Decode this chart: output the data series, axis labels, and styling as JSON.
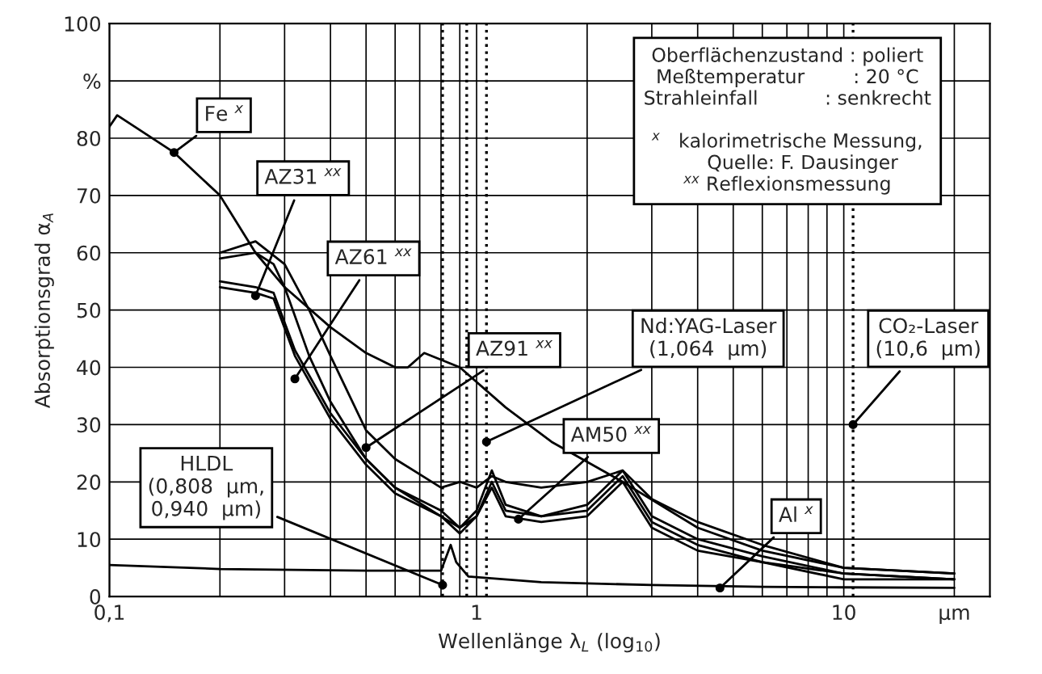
{
  "chart_data": {
    "type": "line",
    "xlabel": "Wellenlänge λ$_{L}$ (log$_{10}$)",
    "ylabel": "Absorptionsgrad α$_{A}$",
    "log": "x",
    "grid": true,
    "legend": false,
    "line_style": "solid",
    "xlim": [
      0.1,
      25
    ],
    "xticks": [
      {
        "value": 0.1,
        "label": "0,1"
      },
      1,
      10,
      {
        "value": 20,
        "label": "µm"
      }
    ],
    "ylim": [
      0,
      100
    ],
    "yticks": [
      0,
      10,
      20,
      30,
      40,
      50,
      60,
      70,
      80,
      {
        "value": 90,
        "label": "%"
      },
      100
    ],
    "series": [
      {
        "color": "#000000",
        "x": [
          0.1,
          0.105,
          0.15,
          0.2,
          0.25,
          0.3,
          0.4,
          0.5,
          0.6,
          0.65,
          0.72,
          0.9,
          1.2,
          1.6,
          2.5,
          4,
          6,
          10,
          20
        ],
        "values": [
          82,
          84,
          77.5,
          70,
          60,
          54,
          47,
          42.5,
          40,
          40,
          42.5,
          40,
          33,
          27,
          20,
          12,
          8,
          5,
          4
        ]
      },
      {
        "color": "#000000",
        "x": [
          0.2,
          0.25,
          0.3,
          0.35,
          0.4,
          0.5,
          0.6,
          0.8,
          0.9,
          1.0,
          1.1,
          1.2,
          1.5,
          2.0,
          2.5,
          3,
          4,
          6,
          10,
          20
        ],
        "values": [
          60,
          62,
          58,
          50,
          42,
          29,
          24,
          19,
          20,
          19,
          21,
          20,
          19,
          20,
          22,
          17,
          13,
          9,
          5,
          4
        ]
      },
      {
        "color": "#000000",
        "x": [
          0.2,
          0.25,
          0.28,
          0.3,
          0.35,
          0.4,
          0.5,
          0.6,
          0.8,
          0.9,
          1.0,
          1.1,
          1.2,
          1.5,
          2.0,
          2.5,
          3,
          4,
          6,
          10,
          20
        ],
        "values": [
          59,
          60,
          58,
          54,
          42,
          34,
          24,
          19,
          15,
          12,
          15,
          22,
          16,
          14,
          16,
          22,
          14,
          10,
          7,
          4,
          3
        ]
      },
      {
        "color": "#000000",
        "x": [
          0.2,
          0.25,
          0.28,
          0.32,
          0.4,
          0.5,
          0.6,
          0.8,
          0.9,
          1.0,
          1.1,
          1.2,
          1.5,
          2.0,
          2.5,
          3,
          4,
          6,
          10,
          20
        ],
        "values": [
          54,
          53,
          52,
          42,
          31,
          23,
          18,
          14,
          12,
          14,
          20,
          15,
          14,
          15,
          21,
          13,
          9,
          6,
          4,
          3
        ]
      },
      {
        "color": "#000000",
        "x": [
          0.2,
          0.25,
          0.28,
          0.32,
          0.4,
          0.5,
          0.6,
          0.8,
          0.9,
          1.0,
          1.1,
          1.2,
          1.5,
          2.0,
          2.5,
          3,
          4,
          6,
          10,
          20
        ],
        "values": [
          55,
          54,
          53,
          43,
          32,
          24,
          19,
          14,
          11,
          14,
          19,
          14,
          13,
          14,
          20,
          12,
          8,
          6,
          3,
          3
        ]
      },
      {
        "color": "#000000",
        "x": [
          0.1,
          0.2,
          0.5,
          0.8,
          0.85,
          0.88,
          0.95,
          1.5,
          3,
          6,
          10,
          20
        ],
        "values": [
          5.5,
          4.8,
          4.5,
          4.5,
          9,
          6,
          3.5,
          2.5,
          2,
          1.7,
          1.6,
          1.5
        ]
      }
    ],
    "ref_lines": [
      {
        "axis": "x",
        "value": 0.808,
        "line_style": "dotted",
        "color": "#000000"
      },
      {
        "axis": "x",
        "value": 0.94,
        "line_style": "dotted",
        "color": "#000000"
      },
      {
        "axis": "x",
        "value": 1.064,
        "line_style": "dotted",
        "color": "#000000"
      },
      {
        "axis": "x",
        "value": 10.6,
        "line_style": "dotted",
        "color": "#000000"
      }
    ],
    "annotations": [
      {
        "text": "Fe $^{x}$",
        "x": 0.15,
        "y": 77.5
      },
      {
        "text": "AZ31 $^{xx}$",
        "x": 0.25,
        "y": 52.5
      },
      {
        "text": "AZ61 $^{xx}$",
        "x": 0.32,
        "y": 38
      },
      {
        "text": "AZ91 $^{xx}$",
        "x": 0.5,
        "y": 26
      },
      {
        "text": "Nd:YAG-Laser\n(1,064  µm)",
        "x": 1.064,
        "y": 27
      },
      {
        "text": "CO₂-Laser\n(10,6  µm)",
        "x": 10.6,
        "y": 30
      },
      {
        "text": "AM50 $^{xx}$",
        "x": 1.3,
        "y": 13.5
      },
      {
        "text": "Al $^{x}$",
        "x": 4.6,
        "y": 1.5
      },
      {
        "text": "HLDL\n(0,808  µm,\n0,940  µm)",
        "x": 0.808,
        "y": 2
      },
      "Oberflächenzustand : poliert\nMeßtemperatur        : 20 °C\nStrahleinfall           : senkrecht\n\n$^{x}$   kalorimetrische Messung,\n     Quelle: F. Dausinger\n$^{xx}$ Reflexionsmessung"
    ]
  }
}
